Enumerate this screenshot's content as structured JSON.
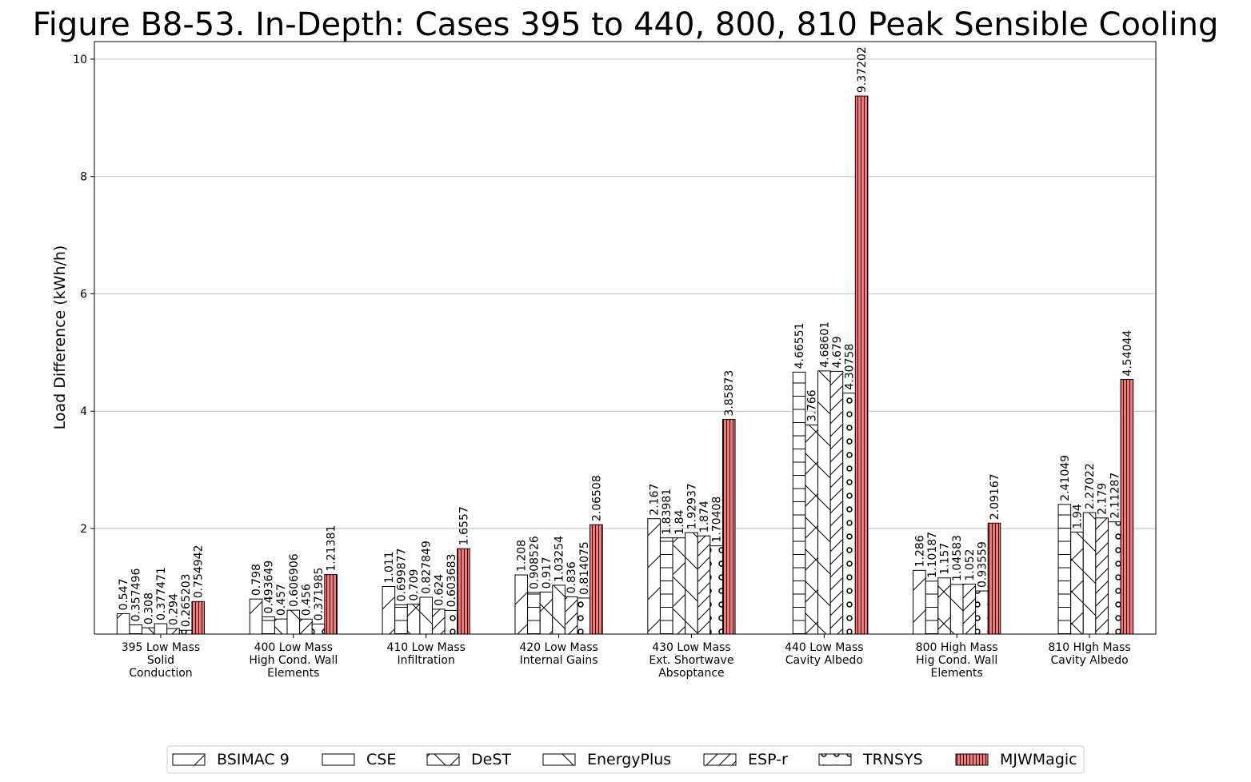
{
  "chart_data": {
    "type": "bar",
    "title": "Figure B8-53. In-Depth: Cases 395 to 440, 800, 810 Peak Sensible Cooling",
    "xlabel": "",
    "ylabel": "Load Difference (kWh/h)",
    "ylim": [
      0.2,
      10.3
    ],
    "yticks": [
      2,
      4,
      6,
      8,
      10
    ],
    "grid": "y-major",
    "legend_position": "bottom-center",
    "categories": [
      [
        "395 Low Mass",
        "Solid",
        "Conduction"
      ],
      [
        "400 Low Mass",
        "High Cond. Wall",
        "Elements"
      ],
      [
        "410 Low Mass",
        "Infiltration"
      ],
      [
        "420 Low Mass",
        "Internal Gains"
      ],
      [
        "430 Low Mass",
        "Ext. Shortwave",
        "Absoptance"
      ],
      [
        "440 Low Mass",
        "Cavity Albedo"
      ],
      [
        "800 High Mass",
        "Hig Cond. Wall",
        "Elements"
      ],
      [
        "810 HIgh Mass",
        "Cavity Albedo"
      ]
    ],
    "series": [
      {
        "name": "BSIMAC 9",
        "hatch": "diag-back",
        "color": "#ffffff",
        "values": [
          0.547,
          0.798,
          1.011,
          1.208,
          2.167,
          null,
          1.286,
          null
        ],
        "labels": [
          "0.547",
          "0.798",
          "1.011",
          "1.208",
          "2.167",
          "",
          "1.286",
          ""
        ]
      },
      {
        "name": "CSE",
        "hatch": "hlines",
        "color": "#ffffff",
        "values": [
          0.357496,
          0.493649,
          0.699877,
          0.908526,
          1.83981,
          4.66551,
          1.10187,
          2.41049
        ],
        "labels": [
          "0.357496",
          "0.493649",
          "0.699877",
          "0.908526",
          "1.83981",
          "4.66551",
          "1.10187",
          "2.41049"
        ]
      },
      {
        "name": "DeST",
        "hatch": "cross",
        "color": "#ffffff",
        "values": [
          0.308,
          0.457,
          0.709,
          0.917,
          1.84,
          3.766,
          1.157,
          1.94
        ],
        "labels": [
          "0.308",
          "0.457",
          "0.709",
          "0.917",
          "1.84",
          "3.766",
          "1.157",
          "1.94"
        ]
      },
      {
        "name": "EnergyPlus",
        "hatch": "diag-fwd",
        "color": "#ffffff",
        "values": [
          0.377471,
          0.606906,
          0.827849,
          1.03254,
          1.92937,
          4.68601,
          1.04583,
          2.27022
        ],
        "labels": [
          "0.377471",
          "0.606906",
          "0.827849",
          "1.03254",
          "1.92937",
          "4.68601",
          "1.04583",
          "2.27022"
        ]
      },
      {
        "name": "ESP-r",
        "hatch": "diag-back-dense",
        "color": "#ffffff",
        "values": [
          0.294,
          0.456,
          0.624,
          0.836,
          1.874,
          4.679,
          1.052,
          2.179
        ],
        "labels": [
          "0.294",
          "0.456",
          "0.624",
          "0.836",
          "1.874",
          "4.679",
          "1.052",
          "2.179"
        ]
      },
      {
        "name": "TRNSYS",
        "hatch": "circles",
        "color": "#ffffff",
        "values": [
          0.265203,
          0.371985,
          0.603683,
          0.814075,
          1.70408,
          4.30758,
          0.93559,
          2.11287
        ],
        "labels": [
          "0.265203",
          "0.371985",
          "0.603683",
          "0.814075",
          "1.70408",
          "4.30758",
          "0.93559",
          "2.11287"
        ]
      },
      {
        "name": "MJWMagic",
        "hatch": "vlines",
        "color": "#ff7373",
        "values": [
          0.754942,
          1.21381,
          1.6557,
          2.06508,
          3.85873,
          9.37202,
          2.09167,
          4.54044
        ],
        "labels": [
          "0.754942",
          "1.21381",
          "1.6557",
          "2.06508",
          "3.85873",
          "9.37202",
          "2.09167",
          "4.54044"
        ]
      }
    ]
  }
}
